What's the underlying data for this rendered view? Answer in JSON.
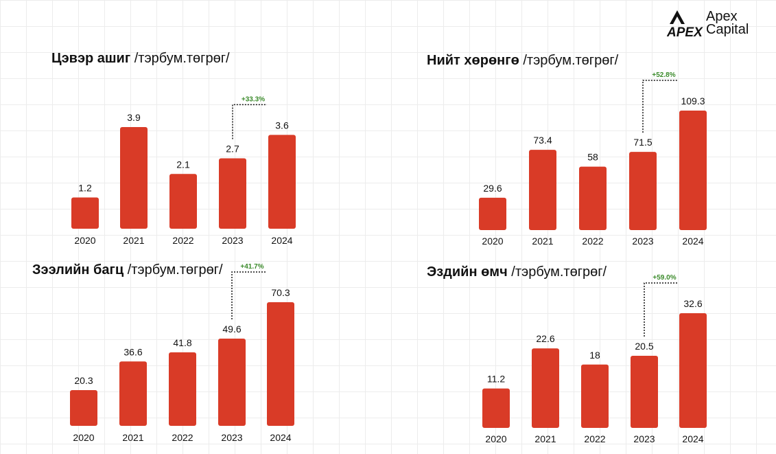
{
  "brand": {
    "line1": "Apex",
    "line2": "Capital",
    "mark": "APEX"
  },
  "colors": {
    "bar": "#d93b27",
    "growth": "#3a8a2a"
  },
  "chart_data": [
    {
      "type": "bar",
      "title": "Цэвэр ашиг",
      "unit": "/тэрбум.төгрөг/",
      "categories": [
        "2020",
        "2021",
        "2022",
        "2023",
        "2024"
      ],
      "values": [
        1.2,
        3.9,
        2.1,
        2.7,
        3.6
      ],
      "labels": [
        "1.2",
        "3.9",
        "2.1",
        "2.7",
        "3.6"
      ],
      "growth": "+33.3%"
    },
    {
      "type": "bar",
      "title": "Нийт хөрөнгө",
      "unit": "/тэрбум.төгрөг/",
      "categories": [
        "2020",
        "2021",
        "2022",
        "2023",
        "2024"
      ],
      "values": [
        29.6,
        73.4,
        58,
        71.5,
        109.3
      ],
      "labels": [
        "29.6",
        "73.4",
        "58",
        "71.5",
        "109.3"
      ],
      "growth": "+52.8%"
    },
    {
      "type": "bar",
      "title": "Зээлийн багц",
      "unit": "/тэрбум.төгрөг/",
      "categories": [
        "2020",
        "2021",
        "2022",
        "2023",
        "2024"
      ],
      "values": [
        20.3,
        36.6,
        41.8,
        49.6,
        70.3
      ],
      "labels": [
        "20.3",
        "36.6",
        "41.8",
        "49.6",
        "70.3"
      ],
      "growth": "+41.7%"
    },
    {
      "type": "bar",
      "title": "Эздийн өмч",
      "unit": "/тэрбум.төгрөг/",
      "categories": [
        "2020",
        "2021",
        "2022",
        "2023",
        "2024"
      ],
      "values": [
        11.2,
        22.6,
        18,
        20.5,
        32.6
      ],
      "labels": [
        "11.2",
        "22.6",
        "18",
        "20.5",
        "32.6"
      ],
      "growth": "+59.0%"
    }
  ]
}
